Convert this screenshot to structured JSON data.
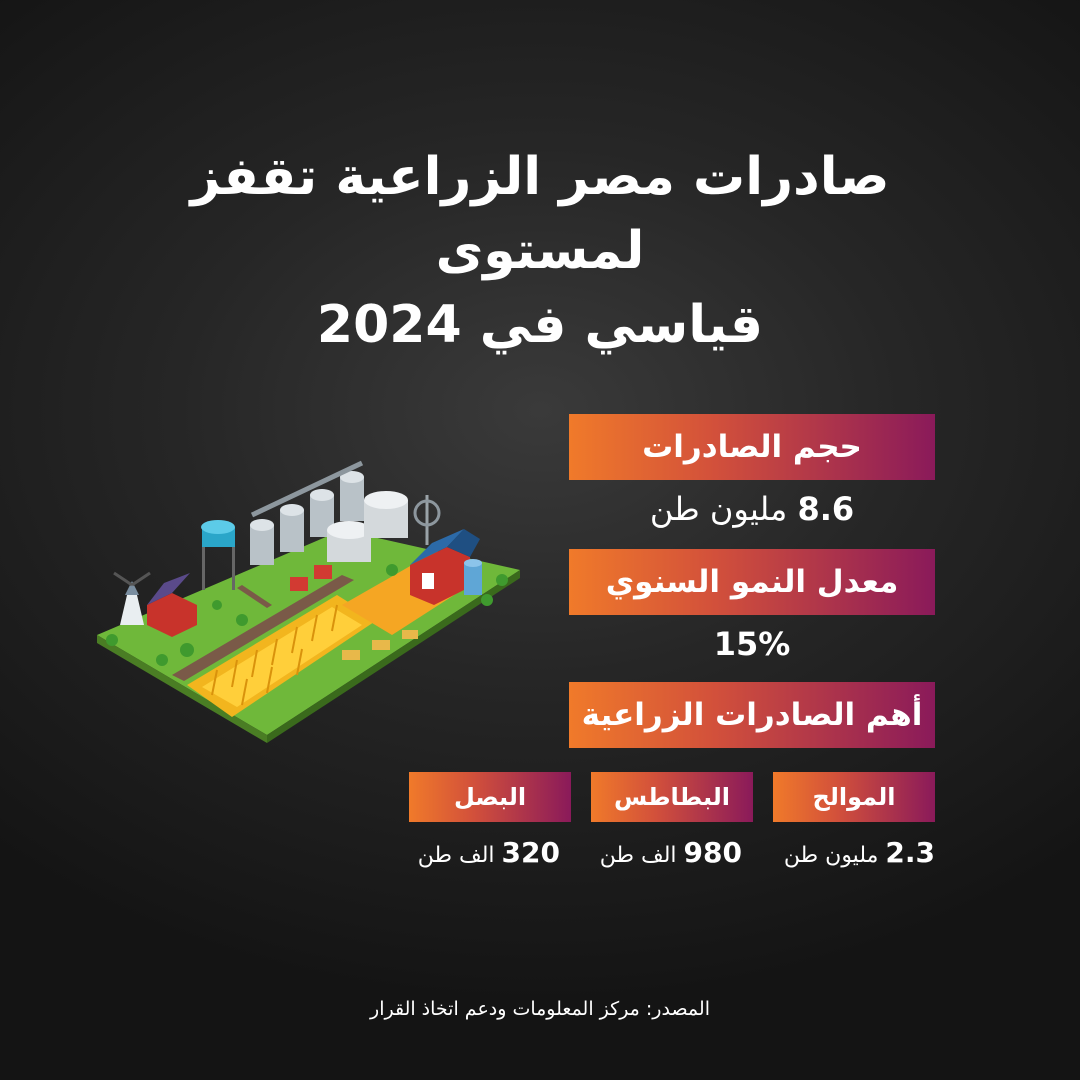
{
  "title_line1": "صادرات مصر الزراعية تقفز لمستوى",
  "title_line2": "قياسي في 2024",
  "volume": {
    "label": "حجم الصادرات",
    "number": "8.6",
    "unit": "مليون طن"
  },
  "growth": {
    "label": "معدل النمو السنوي",
    "value": "15%"
  },
  "top_exports": {
    "label": "أهم الصادرات الزراعية",
    "items": [
      {
        "name": "الموالح",
        "number": "2.3",
        "unit": "مليون طن"
      },
      {
        "name": "البطاطس",
        "number": "980",
        "unit": "الف طن"
      },
      {
        "name": "البصل",
        "number": "320",
        "unit": "الف طن"
      }
    ]
  },
  "source": "المصدر: مركز المعلومات ودعم اتخاذ القرار",
  "colors": {
    "gradient_start": "#f07a2a",
    "gradient_end": "#8a1a5a",
    "background": "#1c1c1c"
  },
  "illustration": "isometric-farm-illustration"
}
